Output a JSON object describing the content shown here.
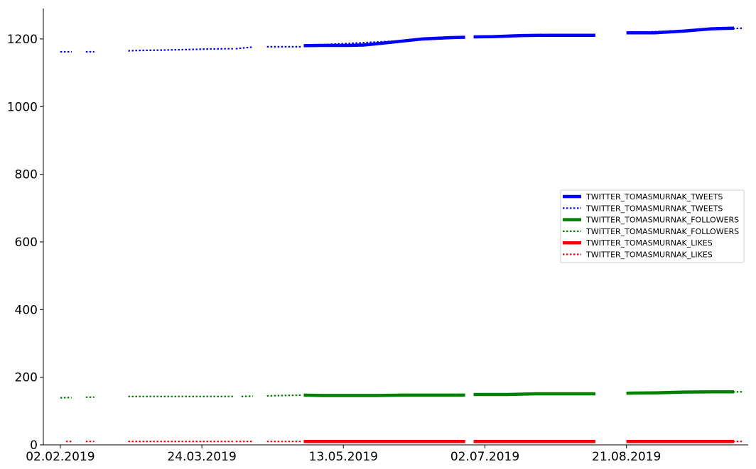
{
  "chart_data": {
    "type": "line",
    "title": "",
    "xlabel": "",
    "ylabel": "",
    "x_type": "date",
    "xlim": [
      "2019-01-27",
      "2019-10-03"
    ],
    "ylim": [
      0,
      1290
    ],
    "xticks": [
      "2019-02-02",
      "2019-03-24",
      "2019-05-13",
      "2019-07-02",
      "2019-08-21"
    ],
    "xtick_labels": [
      "02.02.2019",
      "24.03.2019",
      "13.05.2019",
      "02.07.2019",
      "21.08.2019"
    ],
    "yticks": [
      0,
      200,
      400,
      600,
      800,
      1000,
      1200
    ],
    "ytick_labels": [
      "0",
      "200",
      "400",
      "600",
      "800",
      "1000",
      "1200"
    ],
    "grid": false,
    "legend_position": "center-right",
    "series": [
      {
        "name": "TWITTER_TOMASMURNAK_TWEETS",
        "color": "#0000ff",
        "style": "solid",
        "segments": [
          [
            [
              "2019-04-29",
              1180
            ],
            [
              "2019-05-05",
              1181
            ],
            [
              "2019-05-15",
              1181
            ],
            [
              "2019-05-20",
              1182
            ],
            [
              "2019-05-25",
              1186
            ],
            [
              "2019-06-03",
              1194
            ],
            [
              "2019-06-10",
              1200
            ],
            [
              "2019-06-20",
              1204
            ],
            [
              "2019-06-25",
              1205
            ]
          ],
          [
            [
              "2019-06-28",
              1206
            ],
            [
              "2019-07-05",
              1207
            ],
            [
              "2019-07-15",
              1210
            ],
            [
              "2019-07-25",
              1211
            ],
            [
              "2019-08-10",
              1211
            ]
          ],
          [
            [
              "2019-08-21",
              1218
            ],
            [
              "2019-08-31",
              1218
            ],
            [
              "2019-09-10",
              1223
            ],
            [
              "2019-09-20",
              1230
            ],
            [
              "2019-09-28",
              1232
            ]
          ]
        ]
      },
      {
        "name": "TWITTER_TOMASMURNAK_TWEETS",
        "color": "#0000ff",
        "style": "dotted",
        "segments": [
          [
            [
              "2019-02-02",
              1162
            ],
            [
              "2019-02-06",
              1162
            ]
          ],
          [
            [
              "2019-02-11",
              1162
            ],
            [
              "2019-02-14",
              1162
            ]
          ],
          [
            [
              "2019-02-26",
              1165
            ],
            [
              "2019-03-02",
              1166
            ],
            [
              "2019-03-10",
              1167
            ],
            [
              "2019-03-20",
              1169
            ],
            [
              "2019-03-25",
              1170
            ],
            [
              "2019-04-01",
              1171
            ],
            [
              "2019-04-04",
              1171
            ]
          ],
          [
            [
              "2019-04-05",
              1171
            ],
            [
              "2019-04-11",
              1176
            ]
          ],
          [
            [
              "2019-04-16",
              1177
            ],
            [
              "2019-04-28",
              1177
            ]
          ],
          [
            [
              "2019-05-01",
              1181
            ],
            [
              "2019-06-25",
              1204
            ]
          ],
          [
            [
              "2019-06-28",
              1206
            ],
            [
              "2019-08-10",
              1211
            ]
          ],
          [
            [
              "2019-08-21",
              1218
            ],
            [
              "2019-10-01",
              1232
            ]
          ]
        ]
      },
      {
        "name": "TWITTER_TOMASMURNAK_FOLLOWERS",
        "color": "#008000",
        "style": "solid",
        "segments": [
          [
            [
              "2019-04-29",
              147
            ],
            [
              "2019-05-05",
              146
            ],
            [
              "2019-05-25",
              146
            ],
            [
              "2019-06-03",
              147
            ],
            [
              "2019-06-25",
              147
            ]
          ],
          [
            [
              "2019-06-28",
              149
            ],
            [
              "2019-07-10",
              149
            ],
            [
              "2019-07-20",
              151
            ],
            [
              "2019-08-10",
              151
            ]
          ],
          [
            [
              "2019-08-21",
              153
            ],
            [
              "2019-09-01",
              154
            ],
            [
              "2019-09-10",
              156
            ],
            [
              "2019-09-20",
              157
            ],
            [
              "2019-09-28",
              157
            ]
          ]
        ]
      },
      {
        "name": "TWITTER_TOMASMURNAK_FOLLOWERS",
        "color": "#008000",
        "style": "dotted",
        "segments": [
          [
            [
              "2019-02-02",
              139
            ],
            [
              "2019-02-06",
              140
            ]
          ],
          [
            [
              "2019-02-11",
              141
            ],
            [
              "2019-02-14",
              141
            ]
          ],
          [
            [
              "2019-02-26",
              143
            ],
            [
              "2019-03-10",
              143
            ],
            [
              "2019-03-25",
              143
            ],
            [
              "2019-04-04",
              143
            ]
          ],
          [
            [
              "2019-04-07",
              143
            ],
            [
              "2019-04-11",
              144
            ]
          ],
          [
            [
              "2019-04-16",
              145
            ],
            [
              "2019-04-28",
              147
            ]
          ],
          [
            [
              "2019-05-01",
              146
            ],
            [
              "2019-06-25",
              147
            ]
          ],
          [
            [
              "2019-06-28",
              149
            ],
            [
              "2019-08-10",
              151
            ]
          ],
          [
            [
              "2019-08-21",
              153
            ],
            [
              "2019-10-01",
              157
            ]
          ]
        ]
      },
      {
        "name": "TWITTER_TOMASMURNAK_LIKES",
        "color": "#ff0000",
        "style": "solid",
        "segments": [
          [
            [
              "2019-04-29",
              10
            ],
            [
              "2019-06-25",
              10
            ]
          ],
          [
            [
              "2019-06-28",
              10
            ],
            [
              "2019-08-10",
              10
            ]
          ],
          [
            [
              "2019-08-21",
              10
            ],
            [
              "2019-09-28",
              10
            ]
          ]
        ]
      },
      {
        "name": "TWITTER_TOMASMURNAK_LIKES",
        "color": "#ff0000",
        "style": "dotted",
        "segments": [
          [
            [
              "2019-02-04",
              10
            ],
            [
              "2019-02-06",
              10
            ]
          ],
          [
            [
              "2019-02-11",
              10
            ],
            [
              "2019-02-14",
              10
            ]
          ],
          [
            [
              "2019-02-26",
              10
            ],
            [
              "2019-04-04",
              10
            ]
          ],
          [
            [
              "2019-04-05",
              10
            ],
            [
              "2019-04-11",
              10
            ]
          ],
          [
            [
              "2019-04-16",
              10
            ],
            [
              "2019-04-28",
              10
            ]
          ],
          [
            [
              "2019-05-01",
              10
            ],
            [
              "2019-06-25",
              10
            ]
          ],
          [
            [
              "2019-06-28",
              10
            ],
            [
              "2019-08-10",
              10
            ]
          ],
          [
            [
              "2019-08-21",
              10
            ],
            [
              "2019-10-01",
              10
            ]
          ]
        ]
      }
    ]
  }
}
